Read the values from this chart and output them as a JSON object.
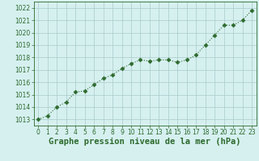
{
  "x": [
    0,
    1,
    2,
    3,
    4,
    5,
    6,
    7,
    8,
    9,
    10,
    11,
    12,
    13,
    14,
    15,
    16,
    17,
    18,
    19,
    20,
    21,
    22,
    23
  ],
  "y": [
    1013.0,
    1013.3,
    1014.0,
    1014.4,
    1015.2,
    1015.3,
    1015.8,
    1016.3,
    1016.6,
    1017.1,
    1017.5,
    1017.8,
    1017.7,
    1017.8,
    1017.8,
    1017.6,
    1017.8,
    1018.2,
    1019.0,
    1019.8,
    1020.6,
    1020.6,
    1021.0,
    1021.8
  ],
  "line_color": "#2d6a2d",
  "marker": "D",
  "marker_size": 2.5,
  "linewidth": 0.8,
  "linestyle": "dotted",
  "background_color": "#d6f0f0",
  "grid_color": "#aacaca",
  "xlabel": "Graphe pression niveau de la mer (hPa)",
  "xlabel_fontsize": 7.5,
  "ylim": [
    1012.5,
    1022.5
  ],
  "xlim": [
    -0.5,
    23.5
  ],
  "yticks": [
    1013,
    1014,
    1015,
    1016,
    1017,
    1018,
    1019,
    1020,
    1021,
    1022
  ],
  "xticks": [
    0,
    1,
    2,
    3,
    4,
    5,
    6,
    7,
    8,
    9,
    10,
    11,
    12,
    13,
    14,
    15,
    16,
    17,
    18,
    19,
    20,
    21,
    22,
    23
  ],
  "tick_fontsize": 5.5,
  "tick_color": "#2d6a2d",
  "label_color": "#2d6a2d",
  "spine_color": "#2d6a2d"
}
